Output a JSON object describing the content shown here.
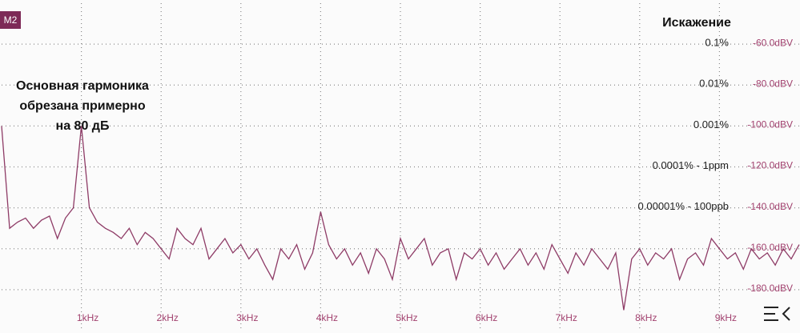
{
  "chart_data": {
    "type": "line",
    "badge": "M2",
    "title": "Искажение",
    "annotation": [
      "Основная гармоника",
      "обрезана примерно",
      "на 80 дБ"
    ],
    "color": "#8e3b66",
    "grid": true,
    "xlim": [
      0,
      10000
    ],
    "ylim": [
      -200,
      -40
    ],
    "xticks": [
      {
        "value": 1000,
        "label": "1kHz"
      },
      {
        "value": 2000,
        "label": "2kHz"
      },
      {
        "value": 3000,
        "label": "3kHz"
      },
      {
        "value": 4000,
        "label": "4kHz"
      },
      {
        "value": 5000,
        "label": "5kHz"
      },
      {
        "value": 6000,
        "label": "6kHz"
      },
      {
        "value": 7000,
        "label": "7kHz"
      },
      {
        "value": 8000,
        "label": "8kHz"
      },
      {
        "value": 9000,
        "label": "9kHz"
      }
    ],
    "yticks": [
      {
        "value": -60,
        "label": "-60.0dBV"
      },
      {
        "value": -80,
        "label": "-80.0dBV"
      },
      {
        "value": -100,
        "label": "-100.0dBV"
      },
      {
        "value": -120,
        "label": "-120.0dBV"
      },
      {
        "value": -140,
        "label": "-140.0dBV"
      },
      {
        "value": -160,
        "label": "-160.0dBV"
      },
      {
        "value": -180,
        "label": "-180.0dBV"
      }
    ],
    "y_annotations": [
      {
        "value": -60,
        "label": "0.1%"
      },
      {
        "value": -80,
        "label": "0.01%"
      },
      {
        "value": -100,
        "label": "0.001%"
      },
      {
        "value": -120,
        "label": "0.0001% - 1ppm"
      },
      {
        "value": -140,
        "label": "0.00001% - 100ppb"
      }
    ],
    "x": [
      0,
      100,
      200,
      300,
      400,
      500,
      600,
      700,
      800,
      900,
      1000,
      1100,
      1200,
      1300,
      1400,
      1500,
      1600,
      1700,
      1800,
      1900,
      2000,
      2100,
      2200,
      2300,
      2400,
      2500,
      2600,
      2700,
      2800,
      2900,
      3000,
      3100,
      3200,
      3300,
      3400,
      3500,
      3600,
      3700,
      3800,
      3900,
      4000,
      4100,
      4200,
      4300,
      4400,
      4500,
      4600,
      4700,
      4800,
      4900,
      5000,
      5100,
      5200,
      5300,
      5400,
      5500,
      5600,
      5700,
      5800,
      5900,
      6000,
      6100,
      6200,
      6300,
      6400,
      6500,
      6600,
      6700,
      6800,
      6900,
      7000,
      7100,
      7200,
      7300,
      7400,
      7500,
      7600,
      7700,
      7800,
      7900,
      8000,
      8100,
      8200,
      8300,
      8400,
      8500,
      8600,
      8700,
      8800,
      8900,
      9000,
      9100,
      9200,
      9300,
      9400,
      9500,
      9600,
      9700,
      9800,
      9900,
      10000
    ],
    "values": [
      -100,
      -150,
      -147,
      -145,
      -150,
      -146,
      -144,
      -155,
      -145,
      -140,
      -100,
      -140,
      -147,
      -150,
      -152,
      -155,
      -150,
      -158,
      -152,
      -155,
      -160,
      -165,
      -150,
      -155,
      -158,
      -150,
      -165,
      -160,
      -155,
      -162,
      -158,
      -165,
      -160,
      -168,
      -175,
      -160,
      -165,
      -158,
      -170,
      -162,
      -142,
      -158,
      -165,
      -160,
      -168,
      -162,
      -172,
      -160,
      -165,
      -175,
      -155,
      -165,
      -160,
      -155,
      -168,
      -162,
      -160,
      -175,
      -162,
      -165,
      -160,
      -168,
      -162,
      -170,
      -165,
      -160,
      -168,
      -162,
      -170,
      -158,
      -165,
      -172,
      -162,
      -168,
      -160,
      -165,
      -170,
      -162,
      -190,
      -165,
      -160,
      -168,
      -162,
      -165,
      -160,
      -175,
      -165,
      -162,
      -168,
      -155,
      -160,
      -165,
      -162,
      -170,
      -160,
      -165,
      -162,
      -168,
      -160,
      -165,
      -158
    ]
  }
}
